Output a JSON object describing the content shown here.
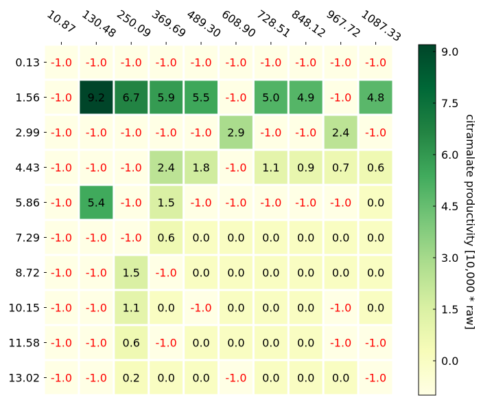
{
  "chart_data": {
    "type": "heatmap",
    "x_ticks": [
      "10.87",
      "130.48",
      "250.09",
      "369.69",
      "489.30",
      "608.90",
      "728.51",
      "848.12",
      "967.72",
      "1087.33"
    ],
    "y_ticks": [
      "0.13",
      "1.56",
      "2.99",
      "4.43",
      "5.86",
      "7.29",
      "8.72",
      "10.15",
      "11.58",
      "13.02"
    ],
    "cell_labels": [
      [
        "-1.0",
        "-1.0",
        "-1.0",
        "-1.0",
        "-1.0",
        "-1.0",
        "-1.0",
        "-1.0",
        "-1.0",
        "-1.0"
      ],
      [
        "-1.0",
        "9.2",
        "6.7",
        "5.9",
        "5.5",
        "-1.0",
        "5.0",
        "4.9",
        "-1.0",
        "4.8"
      ],
      [
        "-1.0",
        "-1.0",
        "-1.0",
        "-1.0",
        "-1.0",
        "2.9",
        "-1.0",
        "-1.0",
        "2.4",
        "-1.0"
      ],
      [
        "-1.0",
        "-1.0",
        "-1.0",
        "2.4",
        "1.8",
        "-1.0",
        "1.1",
        "0.9",
        "0.7",
        "0.6"
      ],
      [
        "-1.0",
        "5.4",
        "-1.0",
        "1.5",
        "-1.0",
        "-1.0",
        "-1.0",
        "-1.0",
        "-1.0",
        "0.0"
      ],
      [
        "-1.0",
        "-1.0",
        "-1.0",
        "0.6",
        "0.0",
        "0.0",
        "0.0",
        "0.0",
        "0.0",
        "0.0"
      ],
      [
        "-1.0",
        "-1.0",
        "1.5",
        "-1.0",
        "0.0",
        "0.0",
        "0.0",
        "0.0",
        "0.0",
        "0.0"
      ],
      [
        "-1.0",
        "-1.0",
        "1.1",
        "0.0",
        "-1.0",
        "0.0",
        "0.0",
        "0.0",
        "-1.0",
        "0.0"
      ],
      [
        "-1.0",
        "-1.0",
        "0.6",
        "-1.0",
        "0.0",
        "0.0",
        "0.0",
        "0.0",
        "-1.0",
        "-1.0"
      ],
      [
        "-1.0",
        "-1.0",
        "0.2",
        "0.0",
        "0.0",
        "-1.0",
        "0.0",
        "0.0",
        "0.0",
        "-1.0"
      ]
    ],
    "colorbar": {
      "label": "citramalate productivity [10,000 * raw]",
      "ticks": [
        "0.0",
        "1.5",
        "3.0",
        "4.5",
        "6.0",
        "7.5",
        "9.0"
      ],
      "range": [
        -1.0,
        9.2
      ]
    },
    "colors": {
      "missing_label": "#ff0000",
      "value_label": "#000000",
      "colormap": "YlGn"
    }
  }
}
